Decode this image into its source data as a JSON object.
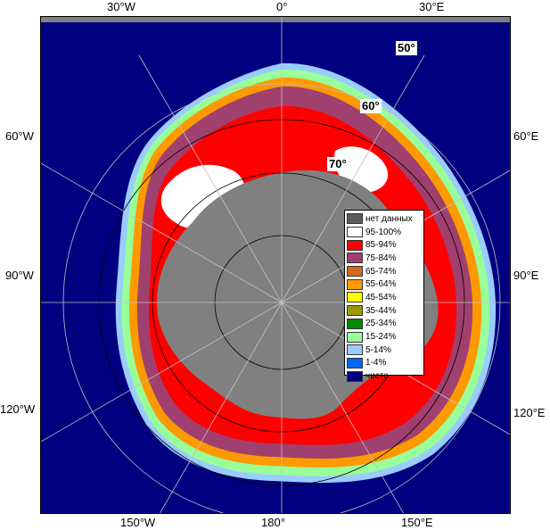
{
  "longitude_labels": {
    "top_30w": "30°W",
    "top_0": "0°",
    "top_30e": "30°E",
    "left_60w": "60°W",
    "right_60e": "60°E",
    "left_90w": "90°W",
    "right_90e": "90°E",
    "left_120w": "120°W",
    "right_120e": "120°E",
    "bottom_150w": "150°W",
    "bottom_180": "180°",
    "bottom_150e": "150°E"
  },
  "latitude_labels": {
    "lat_50": "50°",
    "lat_60": "60°",
    "lat_70": "70°"
  },
  "legend": {
    "items": [
      {
        "label": "нет данных",
        "color": "#5a5a5a"
      },
      {
        "label": "95-100%",
        "color": "#ffffff"
      },
      {
        "label": "85-94%",
        "color": "#ff0000"
      },
      {
        "label": "75-84%",
        "color": "#a0406e"
      },
      {
        "label": "65-74%",
        "color": "#d2691e"
      },
      {
        "label": "55-64%",
        "color": "#ff9900"
      },
      {
        "label": "45-54%",
        "color": "#ffff00"
      },
      {
        "label": "35-44%",
        "color": "#999900"
      },
      {
        "label": "25-34%",
        "color": "#008800"
      },
      {
        "label": "15-24%",
        "color": "#99ff99"
      },
      {
        "label": "5-14%",
        "color": "#99ccff"
      },
      {
        "label": "1-4%",
        "color": "#0066ff"
      },
      {
        "label": "чисто",
        "color": "#000080"
      }
    ]
  },
  "colors": {
    "ocean": "#000080",
    "land": "#808080",
    "ice_95_100": "#ffffff",
    "ice_85_94": "#ff0000",
    "ice_75_84": "#a0406e",
    "ice_edge_orange": "#ff9900",
    "ice_edge_green": "#99ff99",
    "ice_edge_blue": "#99ccff"
  }
}
